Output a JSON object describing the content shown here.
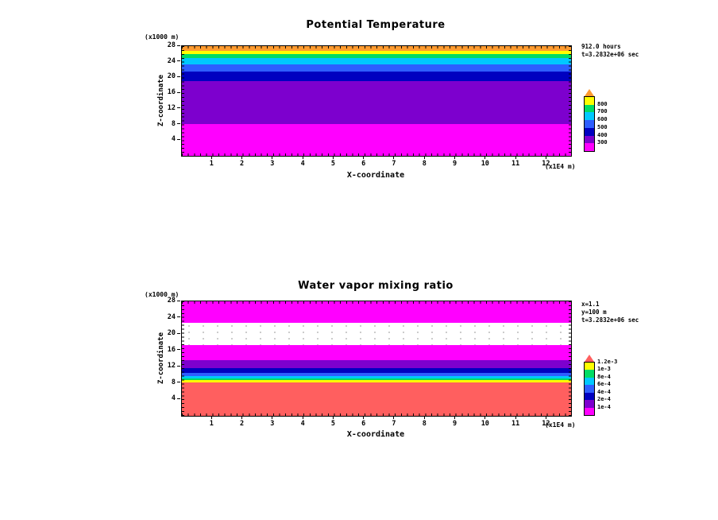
{
  "figure": {
    "background": "#ffffff",
    "description": "Two stacked filled-contour x-z cross-section plots from an atmospheric model run"
  },
  "chart_data": [
    {
      "type": "heatmap",
      "variant": "filled-contour-xz-cross-section",
      "title": "Potential Temperature",
      "xlabel": "X-coordinate",
      "ylabel": "Z-coordinate",
      "x_unit_label": "(x1E4 m)",
      "y_unit_label": "(x1000 m)",
      "x_range": [
        0,
        12.8
      ],
      "y_range": [
        0,
        28
      ],
      "x_ticks": [
        "1",
        "2",
        "3",
        "4",
        "5",
        "6",
        "7",
        "8",
        "9",
        "10",
        "11",
        "12"
      ],
      "y_ticks": [
        "4",
        "8",
        "12",
        "16",
        "20",
        "24",
        "28"
      ],
      "grid": false,
      "legend_position": "right-colorbar",
      "annotation_lines": [
        "912.0 hours",
        "t=3.2832e+06 sec"
      ],
      "contour_level_labels": [
        "300",
        "400",
        "500",
        "600",
        "700",
        "800"
      ],
      "bands_top_to_bottom": [
        {
          "value_range": ">900 K (overflow)",
          "color": "#ff9b2f",
          "height_pct": 4.0,
          "z_km": [
            26.9,
            28.0
          ]
        },
        {
          "value_range": "800-900 K",
          "color": "#ffff00",
          "height_pct": 2.9,
          "z_km": [
            26.1,
            26.9
          ]
        },
        {
          "value_range": "700-800 K",
          "color": "#00dc64",
          "height_pct": 4.3,
          "z_km": [
            24.9,
            26.1
          ]
        },
        {
          "value_range": "600-700 K",
          "color": "#00c8ff",
          "height_pct": 5.4,
          "z_km": [
            23.3,
            24.9
          ]
        },
        {
          "value_range": "500-600 K",
          "color": "#2e5eff",
          "height_pct": 6.5,
          "z_km": [
            21.5,
            23.3
          ]
        },
        {
          "value_range": "400-500 K",
          "color": "#0000c0",
          "height_pct": 8.7,
          "z_km": [
            19.1,
            21.5
          ]
        },
        {
          "value_range": "300-400 K",
          "color": "#7d00ce",
          "height_pct": 39.1,
          "z_km": [
            8.1,
            19.1
          ]
        },
        {
          "value_range": "<300 K",
          "color": "#ff00ff",
          "height_pct": 29.1,
          "z_km": [
            0.0,
            8.1
          ]
        }
      ],
      "colorbar": {
        "labels_top_to_bottom": [
          "800",
          "700",
          "600",
          "500",
          "400",
          "300"
        ],
        "segment_colors_top_to_bottom": [
          "#ffff00",
          "#00dc64",
          "#00c8ff",
          "#2e5eff",
          "#0000c0",
          "#7d00ce",
          "#ff00ff"
        ],
        "pennant_color": "#ff9b2f"
      }
    },
    {
      "type": "heatmap",
      "variant": "filled-contour-xz-cross-section",
      "title": "Water vapor mixing ratio",
      "xlabel": "X-coordinate",
      "ylabel": "Z-coordinate",
      "x_unit_label": "(x1E4 m)",
      "y_unit_label": "(x1000 m)",
      "x_range": [
        0,
        12.8
      ],
      "y_range": [
        0,
        28
      ],
      "x_ticks": [
        "1",
        "2",
        "3",
        "4",
        "5",
        "6",
        "7",
        "8",
        "9",
        "10",
        "11",
        "12"
      ],
      "y_ticks": [
        "4",
        "8",
        "12",
        "16",
        "20",
        "24",
        "28"
      ],
      "grid": false,
      "legend_position": "right-colorbar",
      "annotation_lines": [
        "x=1.1",
        "y=100 m",
        "t=3.2832e+06 sec"
      ],
      "contour_level_labels": [
        "1e-4",
        "2e-4",
        "4e-4",
        "6e-4",
        "8e-4",
        "1e-3",
        "1.2e-3"
      ],
      "bands_top_to_bottom": [
        {
          "value_range": "<1e-4",
          "color": "#ff00ff",
          "height_pct": 18.8,
          "z_km": [
            22.8,
            28.0
          ]
        },
        {
          "value_range": "near-zero minimum (unfilled, dotted contours)",
          "color": "#ffffff",
          "dotted": true,
          "height_pct": 19.4,
          "z_km": [
            17.3,
            22.8
          ]
        },
        {
          "value_range": "<1e-4",
          "color": "#ff00ff",
          "height_pct": 13.2,
          "z_km": [
            13.6,
            17.3
          ]
        },
        {
          "value_range": "1e-4-2e-4",
          "color": "#7d00ce",
          "height_pct": 6.9,
          "z_km": [
            11.7,
            13.6
          ]
        },
        {
          "value_range": "2e-4-4e-4",
          "color": "#0000c0",
          "height_pct": 4.2,
          "z_km": [
            10.5,
            11.7
          ]
        },
        {
          "value_range": "4e-4-6e-4",
          "color": "#2e5eff",
          "height_pct": 2.8,
          "z_km": [
            9.7,
            10.5
          ]
        },
        {
          "value_range": "6e-4-8e-4",
          "color": "#00c8ff",
          "height_pct": 2.1,
          "z_km": [
            9.1,
            9.7
          ]
        },
        {
          "value_range": "8e-4-1e-3",
          "color": "#00dc64",
          "height_pct": 1.7,
          "z_km": [
            8.6,
            9.1
          ]
        },
        {
          "value_range": "1e-3-1.2e-3",
          "color": "#ffff00",
          "height_pct": 1.7,
          "z_km": [
            8.2,
            8.6
          ]
        },
        {
          "value_range": ">1.2e-3 (overflow)",
          "color": "#ff5f5f",
          "height_pct": 29.2,
          "z_km": [
            0.0,
            8.2
          ]
        }
      ],
      "colorbar": {
        "labels_top_to_bottom": [
          "1.2e-3",
          "1e-3",
          "8e-4",
          "6e-4",
          "4e-4",
          "2e-4",
          "1e-4"
        ],
        "segment_colors_top_to_bottom": [
          "#ffff00",
          "#00dc64",
          "#00c8ff",
          "#2e5eff",
          "#0000c0",
          "#7d00ce",
          "#ff00ff"
        ],
        "pennant_color": "#ff5f5f"
      }
    }
  ]
}
